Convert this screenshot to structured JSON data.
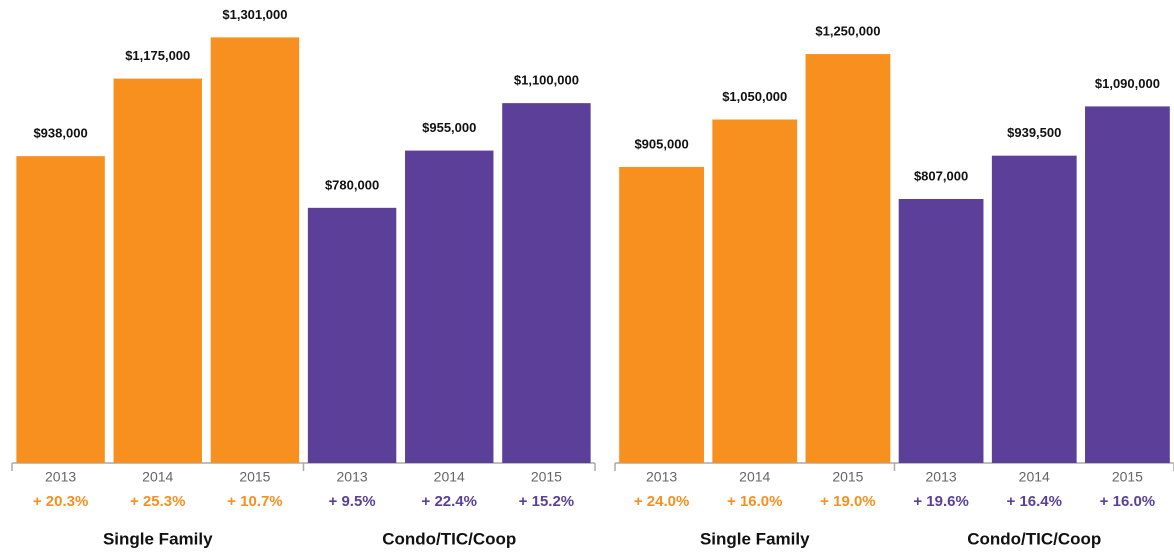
{
  "chart_data": [
    {
      "type": "bar",
      "ylim": [
        0,
        1400000
      ],
      "groups": [
        {
          "name": "Single Family",
          "color": "#f7901e",
          "categories": [
            "2013",
            "2014",
            "2015"
          ],
          "values": [
            938000,
            1175000,
            1301000
          ],
          "value_labels": [
            "$938,000",
            "$1,175,000",
            "$1,301,000"
          ],
          "change_labels": [
            "+ 20.3%",
            "+ 25.3%",
            "+ 10.7%"
          ]
        },
        {
          "name": "Condo/TIC/Coop",
          "color": "#5b3f99",
          "categories": [
            "2013",
            "2014",
            "2015"
          ],
          "values": [
            780000,
            955000,
            1100000
          ],
          "value_labels": [
            "$780,000",
            "$955,000",
            "$1,100,000"
          ],
          "change_labels": [
            "+ 9.5%",
            "+ 22.4%",
            "+ 15.2%"
          ]
        }
      ]
    },
    {
      "type": "bar",
      "ylim": [
        0,
        1400000
      ],
      "groups": [
        {
          "name": "Single Family",
          "color": "#f7901e",
          "categories": [
            "2013",
            "2014",
            "2015"
          ],
          "values": [
            905000,
            1050000,
            1250000
          ],
          "value_labels": [
            "$905,000",
            "$1,050,000",
            "$1,250,000"
          ],
          "change_labels": [
            "+ 24.0%",
            "+ 16.0%",
            "+ 19.0%"
          ]
        },
        {
          "name": "Condo/TIC/Coop",
          "color": "#5b3f99",
          "categories": [
            "2013",
            "2014",
            "2015"
          ],
          "values": [
            807000,
            939500,
            1090000
          ],
          "value_labels": [
            "$807,000",
            "$939,500",
            "$1,090,000"
          ],
          "change_labels": [
            "+ 19.6%",
            "+ 16.4%",
            "+ 16.0%"
          ]
        }
      ]
    }
  ]
}
